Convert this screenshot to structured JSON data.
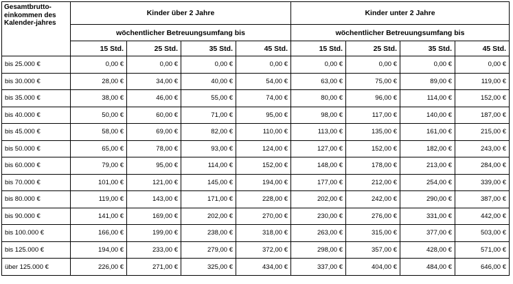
{
  "header": {
    "income_label": "Gesamtbrutto-einkommen des Kalender-jahres",
    "groups": [
      "Kinder über 2 Jahre",
      "Kinder unter 2 Jahre"
    ],
    "subheader": "wöchentlicher Betreuungsumfang bis",
    "hours": [
      "15 Std.",
      "25 Std.",
      "35 Std.",
      "45 Std."
    ]
  },
  "rows": [
    {
      "label": "bis 25.000 €",
      "values": [
        "0,00 €",
        "0,00 €",
        "0,00 €",
        "0,00 €",
        "0,00 €",
        "0,00 €",
        "0,00 €",
        "0,00 €"
      ]
    },
    {
      "label": "bis 30.000 €",
      "values": [
        "28,00 €",
        "34,00 €",
        "40,00 €",
        "54,00 €",
        "63,00 €",
        "75,00 €",
        "89,00 €",
        "119,00 €"
      ]
    },
    {
      "label": "bis 35.000 €",
      "values": [
        "38,00 €",
        "46,00 €",
        "55,00 €",
        "74,00 €",
        "80,00 €",
        "96,00 €",
        "114,00 €",
        "152,00 €"
      ]
    },
    {
      "label": "bis 40.000 €",
      "values": [
        "50,00 €",
        "60,00 €",
        "71,00 €",
        "95,00 €",
        "98,00 €",
        "117,00 €",
        "140,00 €",
        "187,00 €"
      ]
    },
    {
      "label": "bis 45.000 €",
      "values": [
        "58,00 €",
        "69,00 €",
        "82,00 €",
        "110,00 €",
        "113,00 €",
        "135,00 €",
        "161,00 €",
        "215,00 €"
      ]
    },
    {
      "label": "bis 50.000 €",
      "values": [
        "65,00 €",
        "78,00 €",
        "93,00 €",
        "124,00 €",
        "127,00 €",
        "152,00 €",
        "182,00 €",
        "243,00 €"
      ]
    },
    {
      "label": "bis 60.000 €",
      "values": [
        "79,00 €",
        "95,00 €",
        "114,00 €",
        "152,00 €",
        "148,00 €",
        "178,00 €",
        "213,00 €",
        "284,00 €"
      ]
    },
    {
      "label": "bis 70.000 €",
      "values": [
        "101,00 €",
        "121,00 €",
        "145,00 €",
        "194,00 €",
        "177,00 €",
        "212,00 €",
        "254,00 €",
        "339,00 €"
      ]
    },
    {
      "label": "bis 80.000 €",
      "values": [
        "119,00 €",
        "143,00 €",
        "171,00 €",
        "228,00 €",
        "202,00 €",
        "242,00 €",
        "290,00 €",
        "387,00 €"
      ]
    },
    {
      "label": "bis 90.000 €",
      "values": [
        "141,00 €",
        "169,00 €",
        "202,00 €",
        "270,00 €",
        "230,00 €",
        "276,00 €",
        "331,00 €",
        "442,00 €"
      ]
    },
    {
      "label": "bis 100.000 €",
      "values": [
        "166,00 €",
        "199,00 €",
        "238,00 €",
        "318,00 €",
        "263,00 €",
        "315,00 €",
        "377,00 €",
        "503,00 €"
      ]
    },
    {
      "label": "bis 125.000 €",
      "values": [
        "194,00 €",
        "233,00 €",
        "279,00 €",
        "372,00 €",
        "298,00 €",
        "357,00 €",
        "428,00 €",
        "571,00 €"
      ]
    },
    {
      "label": "über 125.000 €",
      "values": [
        "226,00 €",
        "271,00 €",
        "325,00 €",
        "434,00 €",
        "337,00 €",
        "404,00 €",
        "484,00 €",
        "646,00 €"
      ]
    }
  ]
}
